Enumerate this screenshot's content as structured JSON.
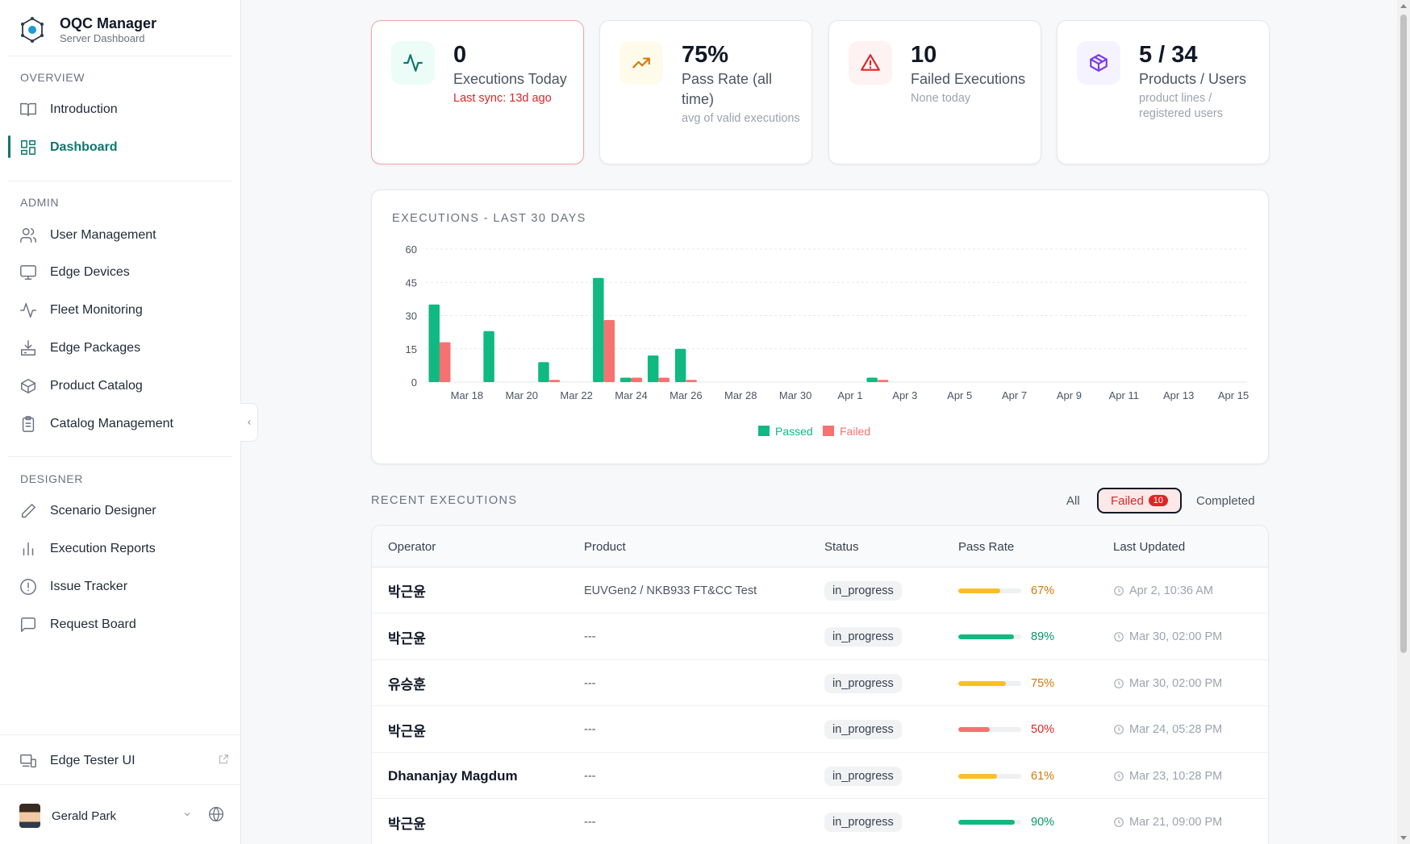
{
  "app": {
    "title": "OQC Manager",
    "subtitle": "Server Dashboard"
  },
  "sidebar": {
    "sections": [
      "OVERVIEW",
      "ADMIN",
      "DESIGNER"
    ],
    "items": [
      {
        "label": "Introduction",
        "icon": "book-open-icon"
      },
      {
        "label": "Dashboard",
        "icon": "dashboard-grid-icon",
        "active": true
      },
      {
        "label": "User Management",
        "icon": "users-icon"
      },
      {
        "label": "Edge Devices",
        "icon": "monitor-icon"
      },
      {
        "label": "Fleet Monitoring",
        "icon": "activity-icon"
      },
      {
        "label": "Edge Packages",
        "icon": "download-tray-icon"
      },
      {
        "label": "Product Catalog",
        "icon": "package-icon"
      },
      {
        "label": "Catalog Management",
        "icon": "clipboard-icon"
      },
      {
        "label": "Scenario Designer",
        "icon": "pencil-icon"
      },
      {
        "label": "Execution Reports",
        "icon": "bar-chart-icon"
      },
      {
        "label": "Issue Tracker",
        "icon": "alert-circle-icon"
      },
      {
        "label": "Request Board",
        "icon": "message-square-icon"
      }
    ],
    "footer_link": "Edge Tester UI",
    "user": "Gerald Park"
  },
  "stats": [
    {
      "value": "0",
      "label": "Executions Today",
      "sub": "Last sync: 13d ago",
      "icon": "activity-icon",
      "color": "#0f766e",
      "bg": "#ecfdf8"
    },
    {
      "value": "75%",
      "label": "Pass Rate (all time)",
      "sub": "avg of valid executions",
      "icon": "trending-up-icon",
      "color": "#d97706",
      "bg": "#fffbeb"
    },
    {
      "value": "10",
      "label": "Failed Executions",
      "sub": "None today",
      "icon": "alert-triangle-icon",
      "color": "#dc2626",
      "bg": "#fef2f2"
    },
    {
      "value": "5 / 34",
      "label": "Products / Users",
      "sub": "product lines / registered users",
      "icon": "box-icon",
      "color": "#7c3aed",
      "bg": "#f5f3ff"
    }
  ],
  "chart": {
    "title": "EXECUTIONS - LAST 30 DAYS"
  },
  "chart_data": {
    "type": "bar",
    "categories": [
      "Mar 17",
      "Mar 18",
      "Mar 19",
      "Mar 20",
      "Mar 21",
      "Mar 22",
      "Mar 23",
      "Mar 24",
      "Mar 25",
      "Mar 26",
      "Mar 27",
      "Mar 28",
      "Mar 29",
      "Mar 30",
      "Mar 31",
      "Apr 1",
      "Apr 2",
      "Apr 3",
      "Apr 4",
      "Apr 5",
      "Apr 6",
      "Apr 7",
      "Apr 8",
      "Apr 9",
      "Apr 10",
      "Apr 11",
      "Apr 12",
      "Apr 13",
      "Apr 14",
      "Apr 15"
    ],
    "tick_labels": [
      "Mar 18",
      "Mar 20",
      "Mar 22",
      "Mar 24",
      "Mar 26",
      "Mar 28",
      "Mar 30",
      "Apr 1",
      "Apr 3",
      "Apr 5",
      "Apr 7",
      "Apr 9",
      "Apr 11",
      "Apr 13",
      "Apr 15"
    ],
    "series": [
      {
        "name": "Passed",
        "color": "#10b981",
        "values": [
          35,
          0,
          23,
          0,
          9,
          0,
          47,
          2,
          12,
          15,
          0,
          0,
          0,
          0,
          0,
          0,
          2,
          0,
          0,
          0,
          0,
          0,
          0,
          0,
          0,
          0,
          0,
          0,
          0,
          0
        ]
      },
      {
        "name": "Failed",
        "color": "#f87171",
        "values": [
          18,
          0,
          0,
          0,
          1,
          0,
          28,
          2,
          2,
          1,
          0,
          0,
          0,
          0,
          0,
          0,
          1,
          0,
          0,
          0,
          0,
          0,
          0,
          0,
          0,
          0,
          0,
          0,
          0,
          0
        ]
      }
    ],
    "yticks": [
      0,
      15,
      30,
      45,
      60
    ],
    "ylim": [
      0,
      60
    ],
    "grid": true,
    "legend": "bottom-center"
  },
  "recent": {
    "title": "RECENT EXECUTIONS",
    "filters": {
      "all": "All",
      "failed": "Failed",
      "failed_count": "10",
      "completed": "Completed"
    },
    "columns": [
      "Operator",
      "Product",
      "Status",
      "Pass Rate",
      "Last Updated"
    ],
    "rows": [
      {
        "operator": "박근윤",
        "product": "EUVGen2 / NKB933 FT&CC Test",
        "status": "in_progress",
        "pass_rate": "67%",
        "pass_value": 67,
        "color": "#fbbf24",
        "text_color": "#d97706",
        "updated": "Apr 2, 10:36 AM"
      },
      {
        "operator": "박근윤",
        "product": "---",
        "status": "in_progress",
        "pass_rate": "89%",
        "pass_value": 89,
        "color": "#10b981",
        "text_color": "#059669",
        "updated": "Mar 30, 02:00 PM"
      },
      {
        "operator": "유승훈",
        "product": "---",
        "status": "in_progress",
        "pass_rate": "75%",
        "pass_value": 75,
        "color": "#fbbf24",
        "text_color": "#d97706",
        "updated": "Mar 30, 02:00 PM"
      },
      {
        "operator": "박근윤",
        "product": "---",
        "status": "in_progress",
        "pass_rate": "50%",
        "pass_value": 50,
        "color": "#f87171",
        "text_color": "#dc2626",
        "updated": "Mar 24, 05:28 PM"
      },
      {
        "operator": "Dhananjay Magdum",
        "product": "---",
        "status": "in_progress",
        "pass_rate": "61%",
        "pass_value": 61,
        "color": "#fbbf24",
        "text_color": "#d97706",
        "updated": "Mar 23, 10:28 PM"
      },
      {
        "operator": "박근윤",
        "product": "---",
        "status": "in_progress",
        "pass_rate": "90%",
        "pass_value": 90,
        "color": "#10b981",
        "text_color": "#059669",
        "updated": "Mar 21, 09:00 PM"
      }
    ]
  }
}
